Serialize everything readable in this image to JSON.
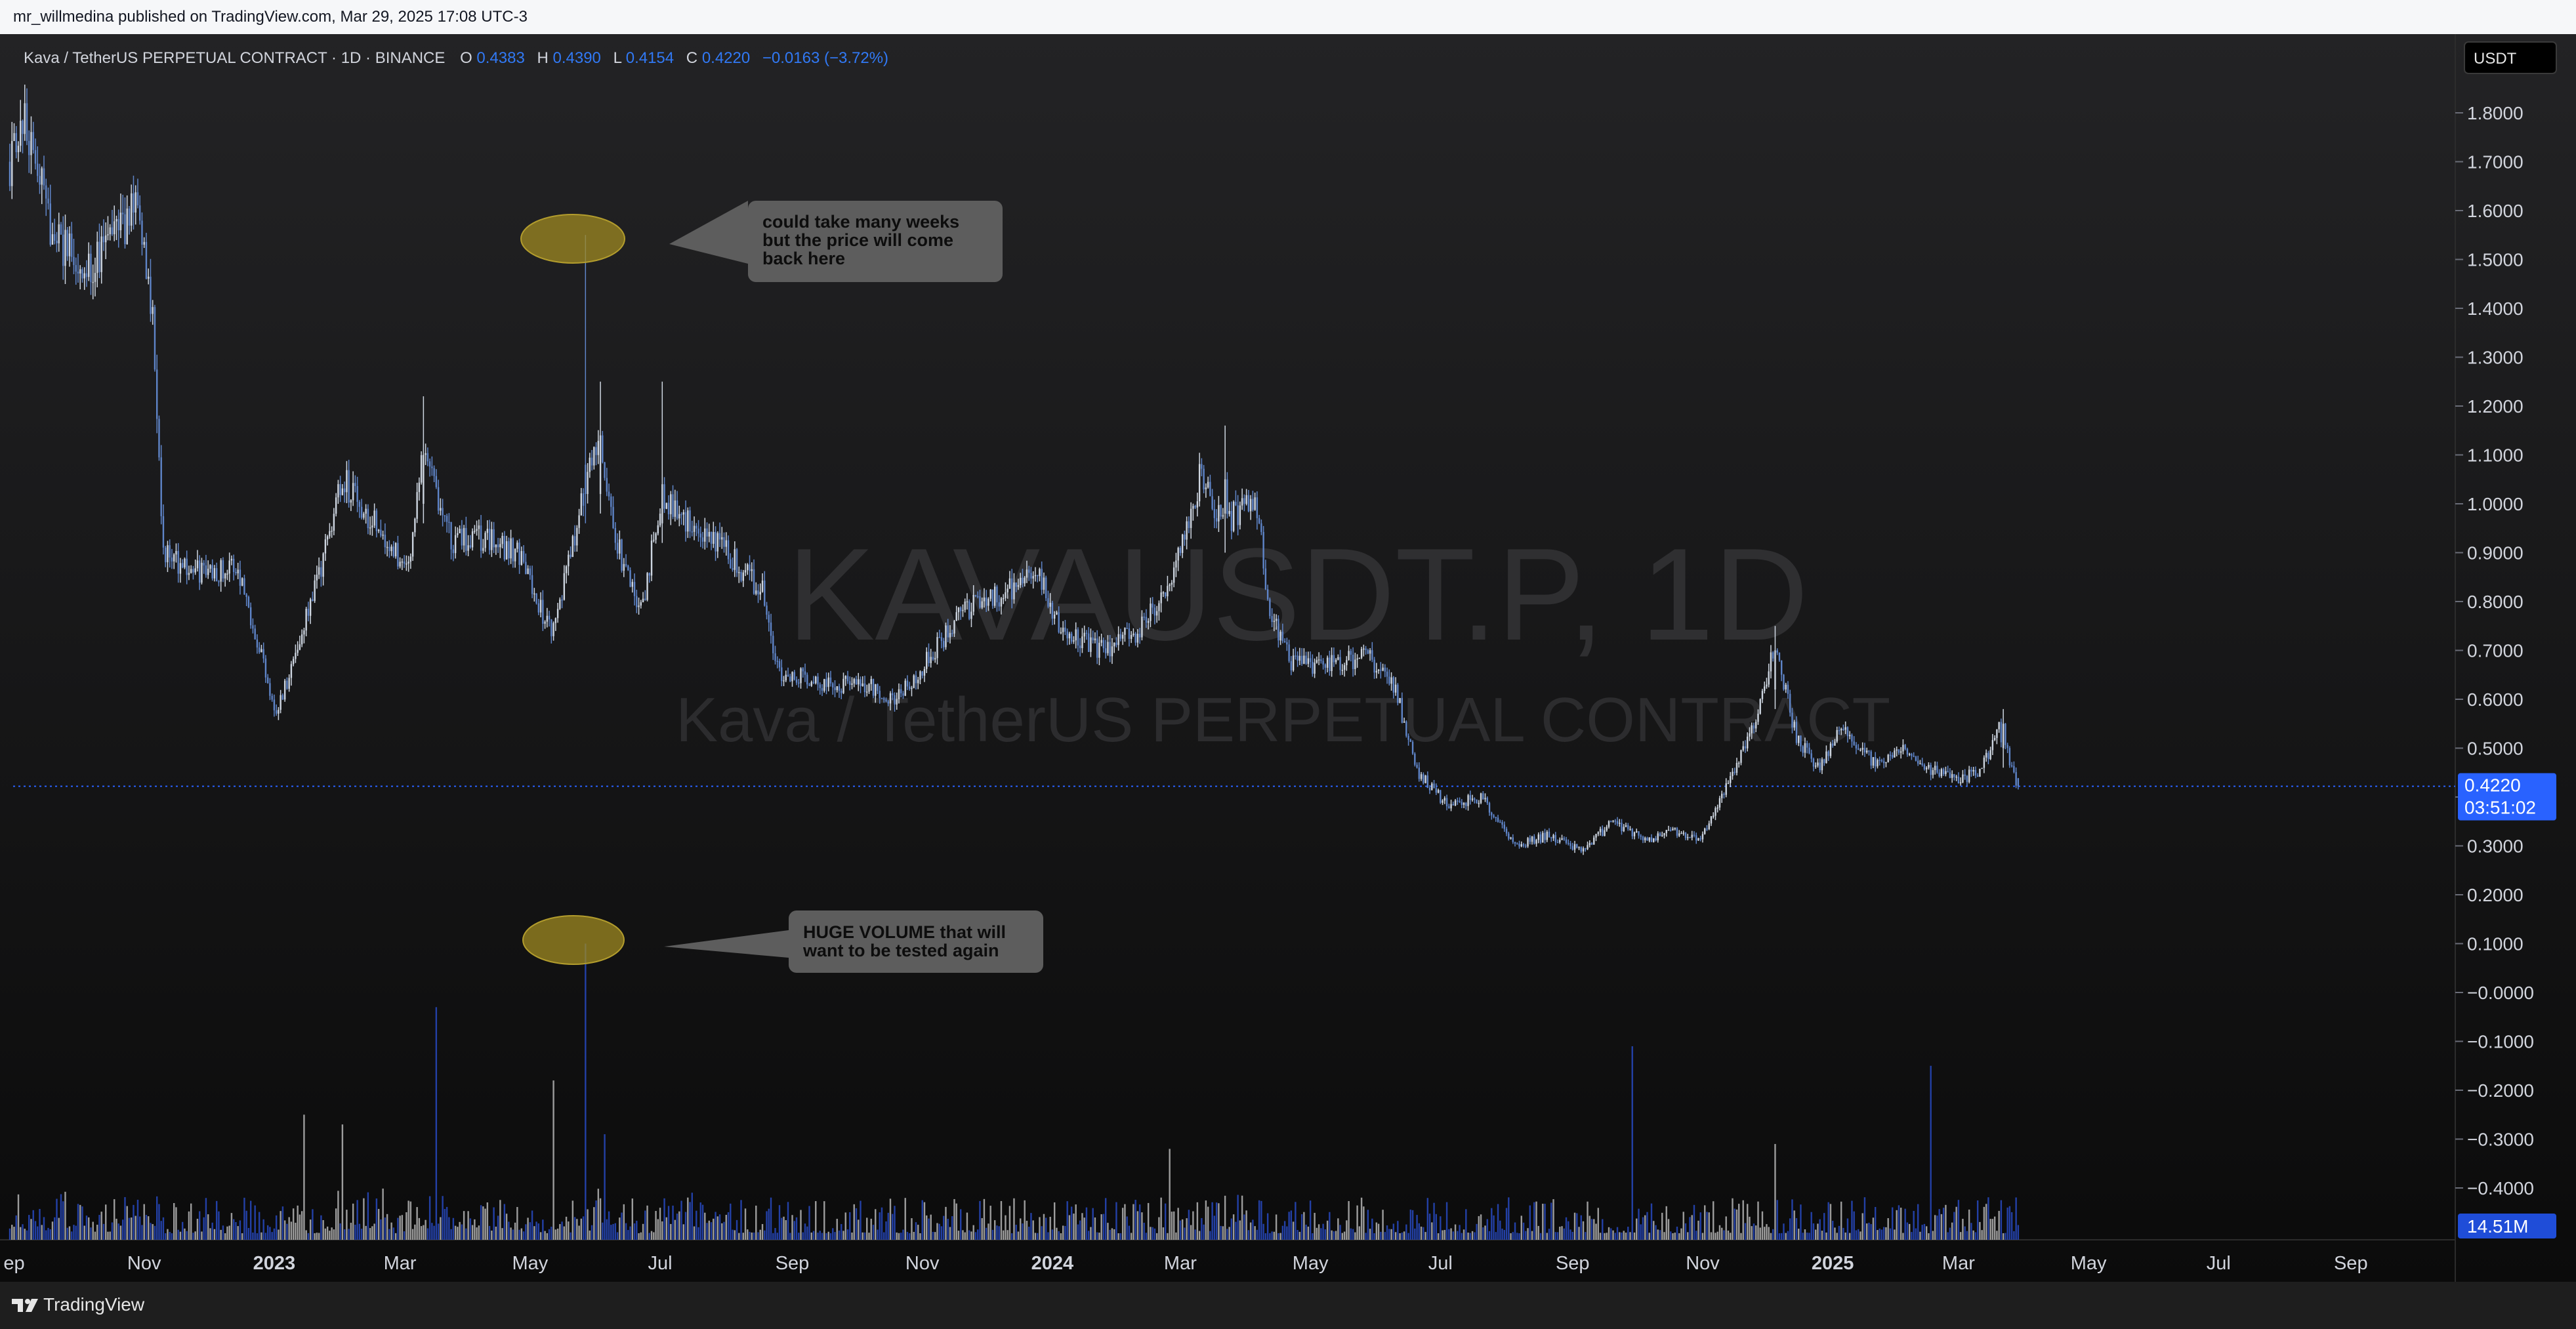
{
  "header": {
    "publisher_line": "mr_willmedina published on TradingView.com, Mar 29, 2025 17:08 UTC-3"
  },
  "footer": {
    "brand": "TradingView"
  },
  "symbol_info": {
    "title": "Kava / TetherUS PERPETUAL CONTRACT · 1D · BINANCE",
    "o_label": "O",
    "o_value": "0.4383",
    "h_label": "H",
    "h_value": "0.4390",
    "l_label": "L",
    "l_value": "0.4154",
    "c_label": "C",
    "c_value": "0.4220",
    "change": "−0.0163 (−3.72%)"
  },
  "watermark": {
    "symbol": "KAVAUSDT.P, 1D",
    "description": "Kava / TetherUS PERPETUAL CONTRACT"
  },
  "currency_badge": "USDT",
  "price_tag": {
    "price": "0.4220",
    "countdown": "03:51:02"
  },
  "volume_tag": "14.51M",
  "annotations": {
    "price_note": "could take many weeks but the price will come back here",
    "volume_note": "HUGE VOLUME that will want to be tested again"
  },
  "colors": {
    "background_top": "#232325",
    "background_bottom": "#0b0b0b",
    "candle_up": "#ced6e1",
    "candle_down": "#5f85c9",
    "volume_up": "#9c9c9c",
    "volume_down": "#2340a6",
    "accent": "#2962ff",
    "highlight_ellipse": "#9f8a22",
    "callout": "#5d5d5d"
  },
  "chart_data": {
    "type": "candlestick",
    "title": "Kava / TetherUS PERPETUAL CONTRACT · 1D · BINANCE",
    "y_axis": {
      "ticks": [
        "1.8000",
        "1.7000",
        "1.6000",
        "1.5000",
        "1.4000",
        "1.3000",
        "1.2000",
        "1.1000",
        "1.0000",
        "0.9000",
        "0.8000",
        "0.7000",
        "0.6000",
        "0.5000",
        "0.4000",
        "0.3000",
        "0.2000",
        "0.1000",
        "−0.0000",
        "−0.1000",
        "−0.2000",
        "−0.3000",
        "−0.4000"
      ],
      "range": [
        -0.45,
        1.86
      ]
    },
    "x_axis": {
      "ticks": [
        {
          "label": "ep",
          "date": "2022-09-01"
        },
        {
          "label": "Nov",
          "date": "2022-11-01"
        },
        {
          "label": "2023",
          "date": "2023-01-01"
        },
        {
          "label": "Mar",
          "date": "2023-03-01"
        },
        {
          "label": "May",
          "date": "2023-05-01"
        },
        {
          "label": "Jul",
          "date": "2023-07-01"
        },
        {
          "label": "Sep",
          "date": "2023-09-01"
        },
        {
          "label": "Nov",
          "date": "2023-11-01"
        },
        {
          "label": "2024",
          "date": "2024-01-01"
        },
        {
          "label": "Mar",
          "date": "2024-03-01"
        },
        {
          "label": "May",
          "date": "2024-05-01"
        },
        {
          "label": "Jul",
          "date": "2024-07-01"
        },
        {
          "label": "Sep",
          "date": "2024-09-01"
        },
        {
          "label": "Nov",
          "date": "2024-11-01"
        },
        {
          "label": "2025",
          "date": "2025-01-01"
        },
        {
          "label": "Mar",
          "date": "2025-03-01"
        },
        {
          "label": "May",
          "date": "2025-05-01"
        },
        {
          "label": "Jul",
          "date": "2025-07-01"
        },
        {
          "label": "Sep",
          "date": "2025-09-01"
        }
      ],
      "range": [
        "2022-08-30",
        "2025-10-20"
      ]
    },
    "last_price": 0.422,
    "price_path": [
      {
        "date": "2022-08-30",
        "close": 1.7
      },
      {
        "date": "2022-09-05",
        "close": 1.8
      },
      {
        "date": "2022-09-18",
        "close": 1.57
      },
      {
        "date": "2022-10-03",
        "close": 1.47
      },
      {
        "date": "2022-10-16",
        "close": 1.54
      },
      {
        "date": "2022-10-28",
        "close": 1.6
      },
      {
        "date": "2022-11-05",
        "close": 1.4
      },
      {
        "date": "2022-11-10",
        "close": 0.9
      },
      {
        "date": "2022-11-25",
        "close": 0.86
      },
      {
        "date": "2022-12-15",
        "close": 0.87
      },
      {
        "date": "2022-12-25",
        "close": 0.71
      },
      {
        "date": "2023-01-02",
        "close": 0.57
      },
      {
        "date": "2023-01-20",
        "close": 0.82
      },
      {
        "date": "2023-02-02",
        "close": 1.05
      },
      {
        "date": "2023-02-20",
        "close": 0.94
      },
      {
        "date": "2023-03-05",
        "close": 0.86
      },
      {
        "date": "2023-03-12",
        "close": 1.12
      },
      {
        "date": "2023-03-25",
        "close": 0.92
      },
      {
        "date": "2023-04-10",
        "close": 0.93
      },
      {
        "date": "2023-04-25",
        "close": 0.9
      },
      {
        "date": "2023-05-05",
        "close": 0.79
      },
      {
        "date": "2023-05-12",
        "close": 0.74
      },
      {
        "date": "2023-05-25",
        "close": 1.0
      },
      {
        "date": "2023-06-02",
        "close": 1.13
      },
      {
        "date": "2023-06-12",
        "close": 0.9
      },
      {
        "date": "2023-06-22",
        "close": 0.78
      },
      {
        "date": "2023-07-02",
        "close": 1.02
      },
      {
        "date": "2023-07-15",
        "close": 0.96
      },
      {
        "date": "2023-08-01",
        "close": 0.9
      },
      {
        "date": "2023-08-18",
        "close": 0.82
      },
      {
        "date": "2023-08-25",
        "close": 0.66
      },
      {
        "date": "2023-09-15",
        "close": 0.63
      },
      {
        "date": "2023-10-05",
        "close": 0.63
      },
      {
        "date": "2023-10-20",
        "close": 0.6
      },
      {
        "date": "2023-11-05",
        "close": 0.69
      },
      {
        "date": "2023-11-20",
        "close": 0.78
      },
      {
        "date": "2023-12-10",
        "close": 0.82
      },
      {
        "date": "2023-12-25",
        "close": 0.86
      },
      {
        "date": "2024-01-05",
        "close": 0.74
      },
      {
        "date": "2024-01-25",
        "close": 0.7
      },
      {
        "date": "2024-02-10",
        "close": 0.74
      },
      {
        "date": "2024-02-25",
        "close": 0.84
      },
      {
        "date": "2024-03-10",
        "close": 1.05
      },
      {
        "date": "2024-03-22",
        "close": 0.96
      },
      {
        "date": "2024-04-05",
        "close": 1.02
      },
      {
        "date": "2024-04-12",
        "close": 0.78
      },
      {
        "date": "2024-04-22",
        "close": 0.67
      },
      {
        "date": "2024-05-10",
        "close": 0.67
      },
      {
        "date": "2024-05-28",
        "close": 0.69
      },
      {
        "date": "2024-06-10",
        "close": 0.62
      },
      {
        "date": "2024-06-20",
        "close": 0.45
      },
      {
        "date": "2024-07-05",
        "close": 0.38
      },
      {
        "date": "2024-07-20",
        "close": 0.4
      },
      {
        "date": "2024-08-05",
        "close": 0.3
      },
      {
        "date": "2024-08-20",
        "close": 0.32
      },
      {
        "date": "2024-09-05",
        "close": 0.29
      },
      {
        "date": "2024-09-20",
        "close": 0.35
      },
      {
        "date": "2024-10-05",
        "close": 0.31
      },
      {
        "date": "2024-10-20",
        "close": 0.33
      },
      {
        "date": "2024-10-30",
        "close": 0.31
      },
      {
        "date": "2024-11-12",
        "close": 0.42
      },
      {
        "date": "2024-11-25",
        "close": 0.55
      },
      {
        "date": "2024-12-05",
        "close": 0.71
      },
      {
        "date": "2024-12-15",
        "close": 0.52
      },
      {
        "date": "2024-12-25",
        "close": 0.46
      },
      {
        "date": "2025-01-05",
        "close": 0.54
      },
      {
        "date": "2025-01-20",
        "close": 0.47
      },
      {
        "date": "2025-02-01",
        "close": 0.5
      },
      {
        "date": "2025-02-15",
        "close": 0.46
      },
      {
        "date": "2025-03-01",
        "close": 0.43
      },
      {
        "date": "2025-03-12",
        "close": 0.46
      },
      {
        "date": "2025-03-20",
        "close": 0.54
      },
      {
        "date": "2025-03-29",
        "close": 0.422
      }
    ],
    "price_spikes": [
      {
        "date": "2023-05-27",
        "high": 1.55,
        "low": 0.96,
        "open": 1.08,
        "close": 1.02
      },
      {
        "date": "2023-06-03",
        "high": 1.25,
        "low": 0.98,
        "open": 1.02,
        "close": 1.14
      },
      {
        "date": "2023-07-02",
        "high": 1.25,
        "low": 0.92,
        "open": 0.96,
        "close": 1.04
      },
      {
        "date": "2023-03-12",
        "high": 1.22,
        "low": 0.96,
        "open": 1.0,
        "close": 1.1
      },
      {
        "date": "2024-03-22",
        "high": 1.16,
        "low": 0.9,
        "open": 0.98,
        "close": 1.05
      },
      {
        "date": "2024-12-05",
        "high": 0.75,
        "low": 0.58,
        "open": 0.62,
        "close": 0.7
      },
      {
        "date": "2025-03-22",
        "high": 0.58,
        "low": 0.46,
        "open": 0.5,
        "close": 0.55
      }
    ],
    "volume_spikes": [
      {
        "date": "2023-05-27",
        "volume_axis_value": 0.1
      },
      {
        "date": "2023-03-18",
        "volume_axis_value": -0.03
      },
      {
        "date": "2023-05-12",
        "volume_axis_value": -0.18
      },
      {
        "date": "2023-01-15",
        "volume_axis_value": -0.25
      },
      {
        "date": "2023-02-02",
        "volume_axis_value": -0.27
      },
      {
        "date": "2023-06-05",
        "volume_axis_value": -0.29
      },
      {
        "date": "2024-02-25",
        "volume_axis_value": -0.32
      },
      {
        "date": "2024-09-29",
        "volume_axis_value": -0.11
      },
      {
        "date": "2025-02-16",
        "volume_axis_value": -0.15
      },
      {
        "date": "2024-12-05",
        "volume_axis_value": -0.31
      }
    ],
    "volume_last": "14.51M"
  }
}
